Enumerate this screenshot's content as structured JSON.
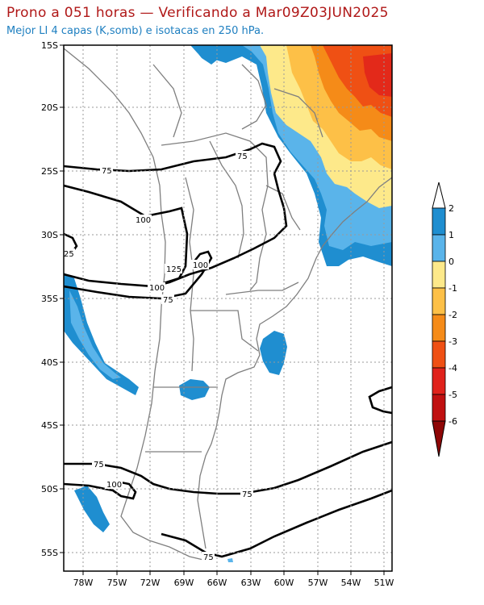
{
  "header": {
    "title": "Prono a 051 horas — Verificando a Mar09Z03JUN2025",
    "subtitle": "Mejor LI 4 capas (K,somb) e isotacas en 250 hPa."
  },
  "map": {
    "lat_ticks": [
      "15S",
      "20S",
      "25S",
      "30S",
      "35S",
      "40S",
      "45S",
      "50S",
      "55S"
    ],
    "lon_ticks": [
      "78W",
      "75W",
      "72W",
      "69W",
      "66W",
      "63W",
      "60W",
      "57W",
      "54W",
      "51W"
    ],
    "grid": "dotted",
    "isotach_labels": [
      "75",
      "100",
      "125",
      "100",
      "100",
      "75",
      "25",
      "75",
      "75",
      "100",
      "75",
      "75"
    ]
  },
  "colorbar": {
    "labels": [
      "2",
      "1",
      "0",
      "-1",
      "-2",
      "-3",
      "-4",
      "-5",
      "-6"
    ],
    "colors": [
      "#1f8ed0",
      "#5ab4ea",
      "#fde98a",
      "#fdc047",
      "#f58b18",
      "#ef5014",
      "#e0221b",
      "#c01010",
      "#8e0606"
    ]
  },
  "colors": {
    "title": "#b01818",
    "subtitle": "#1e7fc0",
    "land": "#ffffff",
    "borders": "#808080",
    "isotach": "#000000"
  }
}
